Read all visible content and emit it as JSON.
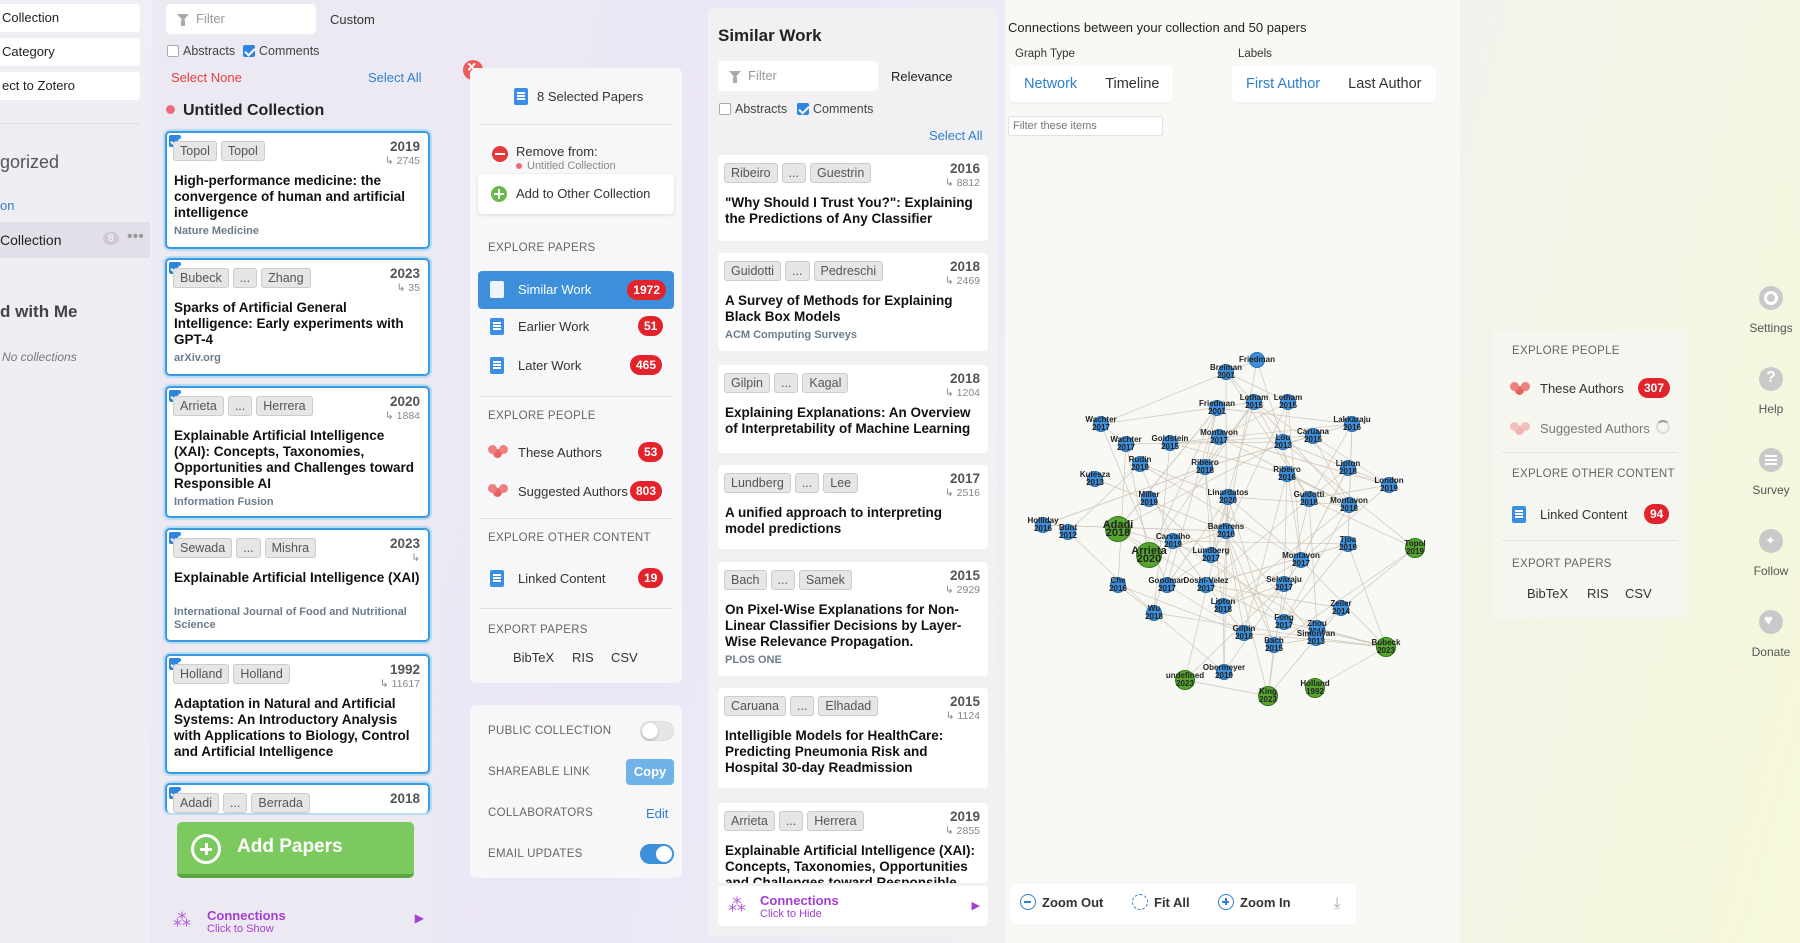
{
  "leftnav": {
    "items": [
      "Collection",
      "Category",
      "ect to Zotero"
    ],
    "uncategorized": "gorized",
    "link": "on",
    "current_collection": "Collection",
    "current_count": "8",
    "shared_heading": "d with Me",
    "no_collections": "No collections"
  },
  "collection": {
    "filter_placeholder": "Filter",
    "sort": "Custom",
    "abstracts_label": "Abstracts",
    "comments_label": "Comments",
    "select_none": "Select None",
    "select_all": "Select All",
    "name": "Untitled Collection",
    "papers": [
      {
        "authors": [
          "Topol",
          "Topol"
        ],
        "year": "2019",
        "cites": "↳ 2745",
        "title": "High-performance medicine: the convergence of human and artificial intelligence",
        "venue": "Nature Medicine"
      },
      {
        "authors": [
          "Bubeck",
          "...",
          "Zhang"
        ],
        "year": "2023",
        "cites": "↳ 35",
        "title": "Sparks of Artificial General Intelligence: Early experiments with GPT-4",
        "venue": "arXiv.org"
      },
      {
        "authors": [
          "Arrieta",
          "...",
          "Herrera"
        ],
        "year": "2020",
        "cites": "↳ 1884",
        "title": "Explainable Artificial Intelligence (XAI): Concepts, Taxonomies, Opportunities and Challenges toward Responsible AI",
        "venue": "Information Fusion"
      },
      {
        "authors": [
          "Sewada",
          "...",
          "Mishra"
        ],
        "year": "2023",
        "cites": "↳",
        "title": "Explainable Artificial Intelligence (XAI)",
        "venue": "International Journal of Food and Nutritional Science"
      },
      {
        "authors": [
          "Holland",
          "Holland"
        ],
        "year": "1992",
        "cites": "↳ 11617",
        "title": "Adaptation in Natural and Artificial Systems: An Introductory Analysis with Applications to Biology, Control and Artificial Intelligence",
        "venue": ""
      },
      {
        "authors": [
          "Adadi",
          "...",
          "Berrada"
        ],
        "year": "2018",
        "cites": "",
        "title": "",
        "venue": ""
      }
    ],
    "add_papers": "Add Papers",
    "connections": "Connections",
    "connections_sub": "Click to Show"
  },
  "actions": {
    "selected": "8 Selected Papers",
    "remove_from": "Remove from:",
    "remove_collection": "Untitled Collection",
    "add_other": "Add to Other Collection",
    "explore_papers": "EXPLORE PAPERS",
    "similar": "Similar Work",
    "similar_count": "1972",
    "earlier": "Earlier Work",
    "earlier_count": "51",
    "later": "Later Work",
    "later_count": "465",
    "explore_people": "EXPLORE PEOPLE",
    "these_authors": "These Authors",
    "these_count": "53",
    "suggested": "Suggested Authors",
    "suggested_count": "803",
    "explore_other": "EXPLORE OTHER CONTENT",
    "linked": "Linked Content",
    "linked_count": "19",
    "export": "EXPORT PAPERS",
    "bibtex": "BibTeX",
    "ris": "RIS",
    "csv": "CSV",
    "public": "PUBLIC COLLECTION",
    "shareable": "SHAREABLE LINK",
    "copy": "Copy",
    "collaborators": "COLLABORATORS",
    "edit": "Edit",
    "email": "EMAIL UPDATES"
  },
  "similar": {
    "title": "Similar Work",
    "filter_placeholder": "Filter",
    "sort": "Relevance",
    "abstracts_label": "Abstracts",
    "comments_label": "Comments",
    "select_all": "Select All",
    "papers": [
      {
        "authors": [
          "Ribeiro",
          "...",
          "Guestrin"
        ],
        "year": "2016",
        "cites": "↳ 8812",
        "title": "\"Why Should I Trust You?\": Explaining the Predictions of Any Classifier",
        "venue": ""
      },
      {
        "authors": [
          "Guidotti",
          "...",
          "Pedreschi"
        ],
        "year": "2018",
        "cites": "↳ 2469",
        "title": "A Survey of Methods for Explaining Black Box Models",
        "venue": "ACM Computing Surveys"
      },
      {
        "authors": [
          "Gilpin",
          "...",
          "Kagal"
        ],
        "year": "2018",
        "cites": "↳ 1204",
        "title": "Explaining Explanations: An Overview of Interpretability of Machine Learning",
        "venue": ""
      },
      {
        "authors": [
          "Lundberg",
          "...",
          "Lee"
        ],
        "year": "2017",
        "cites": "↳ 2516",
        "title": "A unified approach to interpreting model predictions",
        "venue": ""
      },
      {
        "authors": [
          "Bach",
          "...",
          "Samek"
        ],
        "year": "2015",
        "cites": "↳ 2929",
        "title": "On Pixel-Wise Explanations for Non-Linear Classifier Decisions by Layer-Wise Relevance Propagation.",
        "venue": "PLOS ONE"
      },
      {
        "authors": [
          "Caruana",
          "...",
          "Elhadad"
        ],
        "year": "2015",
        "cites": "↳ 1124",
        "title": "Intelligible Models for HealthCare: Predicting Pneumonia Risk and Hospital 30-day Readmission",
        "venue": ""
      },
      {
        "authors": [
          "Arrieta",
          "...",
          "Herrera"
        ],
        "year": "2019",
        "cites": "↳ 2855",
        "title": "Explainable Artificial Intelligence (XAI): Concepts, Taxonomies, Opportunities and Challenges toward Responsible",
        "venue": ""
      }
    ],
    "connections": "Connections",
    "connections_sub": "Click to Hide"
  },
  "graph": {
    "heading": "Connections between your collection and 50 papers",
    "graph_type_label": "Graph Type",
    "network": "Network",
    "timeline": "Timeline",
    "labels_label": "Labels",
    "first_author": "First Author",
    "last_author": "Last Author",
    "filter_placeholder": "Filter these items",
    "zoom_out": "Zoom Out",
    "fit_all": "Fit All",
    "zoom_in": "Zoom In",
    "nodes": [
      {
        "label": "Friedman",
        "year": "",
        "c": "b"
      },
      {
        "label": "Breiman",
        "year": "2001",
        "c": "b"
      },
      {
        "label": "Letham",
        "year": "2015",
        "c": "b"
      },
      {
        "label": "Letham",
        "year": "2015",
        "c": "b"
      },
      {
        "label": "Friedman",
        "year": "2001",
        "c": "b"
      },
      {
        "label": "Wachter",
        "year": "2017",
        "c": "b"
      },
      {
        "label": "Caruana",
        "year": "2015",
        "c": "b"
      },
      {
        "label": "Lakkaraju",
        "year": "2016",
        "c": "b"
      },
      {
        "label": "Wachter",
        "year": "2017",
        "c": "b"
      },
      {
        "label": "Goldstein",
        "year": "2015",
        "c": "b"
      },
      {
        "label": "Montavon",
        "year": "2017",
        "c": "b"
      },
      {
        "label": "Lou",
        "year": "2013",
        "c": "b"
      },
      {
        "label": "Rudin",
        "year": "2019",
        "c": "b"
      },
      {
        "label": "Ribeiro",
        "year": "2018",
        "c": "b"
      },
      {
        "label": "Lipton",
        "year": "2018",
        "c": "b"
      },
      {
        "label": "Kulesza",
        "year": "2013",
        "c": "b"
      },
      {
        "label": "Ribeiro",
        "year": "2016",
        "c": "b"
      },
      {
        "label": "London",
        "year": "2019",
        "c": "b"
      },
      {
        "label": "Miller",
        "year": "2019",
        "c": "b"
      },
      {
        "label": "Linardatos",
        "year": "2020",
        "c": "b"
      },
      {
        "label": "Guidotti",
        "year": "2018",
        "c": "b"
      },
      {
        "label": "Montavon",
        "year": "2018",
        "c": "b"
      },
      {
        "label": "Holliday",
        "year": "2016",
        "c": "b"
      },
      {
        "label": "Adadi",
        "year": "2018",
        "c": "g"
      },
      {
        "label": "Baehrens",
        "year": "2010",
        "c": "b"
      },
      {
        "label": "Bunt",
        "year": "2012",
        "c": "b"
      },
      {
        "label": "Tjoa",
        "year": "2019",
        "c": "b"
      },
      {
        "label": "Topol",
        "year": "2019",
        "c": "g"
      },
      {
        "label": "Arrieta",
        "year": "2020",
        "c": "g"
      },
      {
        "label": "Carvalho",
        "year": "2019",
        "c": "b"
      },
      {
        "label": "Lundberg",
        "year": "2017",
        "c": "b"
      },
      {
        "label": "Montavon",
        "year": "2017",
        "c": "b"
      },
      {
        "label": "Che",
        "year": "2016",
        "c": "b"
      },
      {
        "label": "Goodman",
        "year": "2017",
        "c": "b"
      },
      {
        "label": "Doshi-Velez",
        "year": "2017",
        "c": "b"
      },
      {
        "label": "Selvaraju",
        "year": "2017",
        "c": "b"
      },
      {
        "label": "Lipton",
        "year": "2018",
        "c": "b"
      },
      {
        "label": "Zeiler",
        "year": "2014",
        "c": "b"
      },
      {
        "label": "Wu",
        "year": "2018",
        "c": "b"
      },
      {
        "label": "Fong",
        "year": "2017",
        "c": "b"
      },
      {
        "label": "Zhou",
        "year": "2016",
        "c": "b"
      },
      {
        "label": "Gilpin",
        "year": "2018",
        "c": "b"
      },
      {
        "label": "Bach",
        "year": "2015",
        "c": "b"
      },
      {
        "label": "Simonyan",
        "year": "2013",
        "c": "b"
      },
      {
        "label": "Bubeck",
        "year": "2023",
        "c": "g"
      },
      {
        "label": "undefined",
        "year": "2023",
        "c": "g"
      },
      {
        "label": "Obermeyer",
        "year": "2019",
        "c": "b"
      },
      {
        "label": "King",
        "year": "2023",
        "c": "g"
      },
      {
        "label": "Holland",
        "year": "1992",
        "c": "g"
      }
    ]
  },
  "right": {
    "explore_people": "EXPLORE PEOPLE",
    "these_authors": "These Authors",
    "these_count": "307",
    "suggested": "Suggested Authors",
    "explore_other": "EXPLORE OTHER CONTENT",
    "linked": "Linked Content",
    "linked_count": "94",
    "export": "EXPORT PAPERS",
    "bibtex": "BibTeX",
    "ris": "RIS",
    "csv": "CSV",
    "side": [
      "Settings",
      "Help",
      "Survey",
      "Follow",
      "Donate"
    ]
  }
}
